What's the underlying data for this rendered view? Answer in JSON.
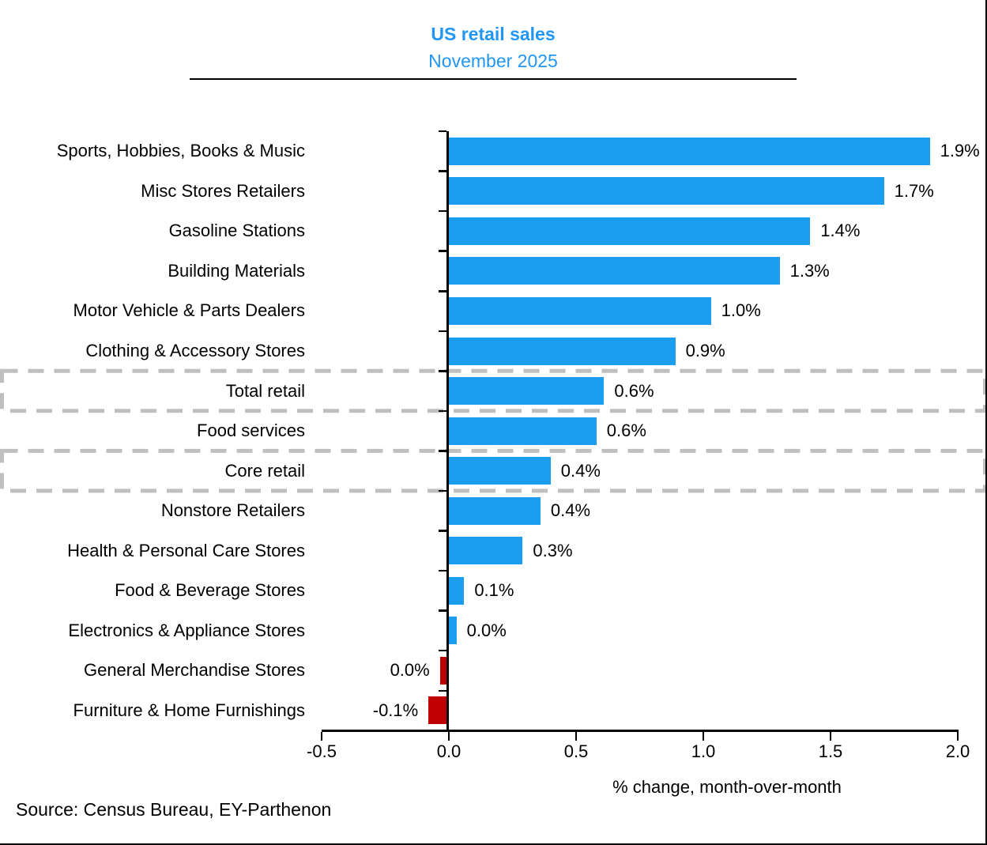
{
  "header": {
    "title": "US retail sales",
    "subtitle": "November 2025"
  },
  "source_note": "Source: Census Bureau, EY-Parthenon",
  "colors": {
    "bar_positive": "#1B9DF0",
    "bar_negative": "#C00000",
    "title_text": "#2196F3",
    "highlight_dash": "#BFBFBF",
    "axis": "#000000",
    "text": "#000000"
  },
  "chart_data": {
    "type": "bar",
    "orientation": "horizontal",
    "title": "US retail sales",
    "subtitle": "November 2025",
    "xlabel": "% change, month-over-month",
    "xlim": [
      -0.5,
      2.0
    ],
    "xticks": [
      -0.5,
      0.0,
      0.5,
      1.0,
      1.5,
      2.0
    ],
    "xtick_labels": [
      "-0.5",
      "0.0",
      "0.5",
      "1.0",
      "1.5",
      "2.0"
    ],
    "grid": false,
    "legend": false,
    "categories": [
      "Sports, Hobbies, Books & Music",
      "Misc Stores Retailers",
      "Gasoline Stations",
      "Building Materials",
      "Motor Vehicle & Parts Dealers",
      "Clothing & Accessory Stores",
      "Total retail",
      "Food services",
      "Core retail",
      "Nonstore Retailers",
      "Health & Personal Care Stores",
      "Food & Beverage Stores",
      "Electronics & Appliance Stores",
      "General Merchandise Stores",
      "Furniture & Home Furnishings"
    ],
    "values": [
      1.9,
      1.7,
      1.4,
      1.3,
      1.0,
      0.9,
      0.6,
      0.6,
      0.4,
      0.4,
      0.3,
      0.1,
      0.0,
      0.0,
      -0.1
    ],
    "data_labels": [
      "1.9%",
      "1.7%",
      "1.4%",
      "1.3%",
      "1.0%",
      "0.9%",
      "0.6%",
      "0.6%",
      "0.4%",
      "0.4%",
      "0.3%",
      "0.1%",
      "0.0%",
      "0.0%",
      "-0.1%"
    ],
    "bar_lengths_est": [
      1.89,
      1.71,
      1.42,
      1.3,
      1.03,
      0.89,
      0.61,
      0.58,
      0.4,
      0.36,
      0.29,
      0.06,
      0.03,
      -0.035,
      -0.08
    ],
    "highlighted_rows": [
      "Total retail",
      "Core retail"
    ]
  }
}
